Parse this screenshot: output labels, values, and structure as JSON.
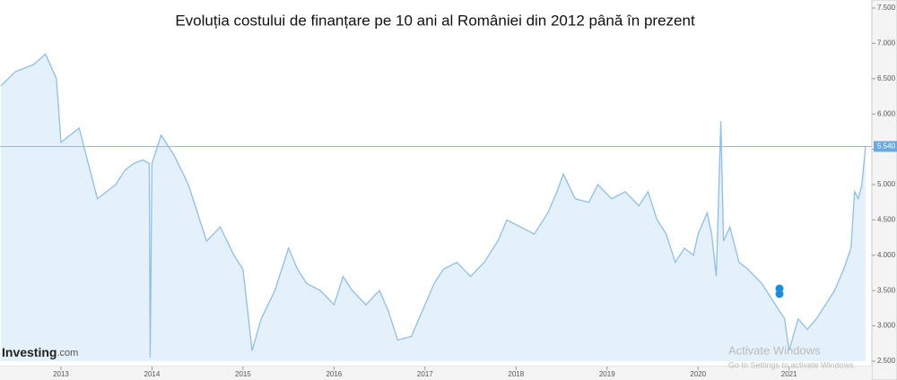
{
  "chart_data": {
    "type": "area",
    "title": "Evoluția costului de finanțare pe 10 ani al României din 2012 până în prezent",
    "x": [
      2012.34,
      2012.5,
      2012.7,
      2012.83,
      2012.95,
      2013.0,
      2013.1,
      2013.2,
      2013.3,
      2013.4,
      2013.5,
      2013.6,
      2013.7,
      2013.8,
      2013.9,
      2013.97,
      2013.98,
      2014.0,
      2014.1,
      2014.25,
      2014.4,
      2014.5,
      2014.6,
      2014.75,
      2014.9,
      2015.0,
      2015.1,
      2015.2,
      2015.35,
      2015.5,
      2015.6,
      2015.7,
      2015.85,
      2016.0,
      2016.1,
      2016.2,
      2016.35,
      2016.5,
      2016.6,
      2016.7,
      2016.85,
      2017.0,
      2017.1,
      2017.2,
      2017.35,
      2017.5,
      2017.65,
      2017.8,
      2017.9,
      2018.05,
      2018.2,
      2018.35,
      2018.45,
      2018.52,
      2018.65,
      2018.8,
      2018.9,
      2019.05,
      2019.2,
      2019.35,
      2019.45,
      2019.55,
      2019.65,
      2019.75,
      2019.85,
      2019.95,
      2020.0,
      2020.1,
      2020.15,
      2020.2,
      2020.25,
      2020.28,
      2020.35,
      2020.45,
      2020.55,
      2020.7,
      2020.8,
      2020.95,
      2021.0,
      2021.1,
      2021.2,
      2021.3,
      2021.4,
      2021.5,
      2021.6,
      2021.68,
      2021.72,
      2021.76,
      2021.8,
      2021.84
    ],
    "series": [
      {
        "color": "#8dbfe8",
        "values": [
          6.4,
          6.6,
          6.7,
          6.85,
          6.5,
          5.6,
          5.7,
          5.8,
          5.3,
          4.8,
          4.9,
          5.0,
          5.2,
          5.3,
          5.35,
          5.3,
          2.55,
          5.3,
          5.7,
          5.4,
          5.0,
          4.6,
          4.2,
          4.4,
          4.0,
          3.8,
          2.65,
          3.1,
          3.5,
          4.1,
          3.8,
          3.6,
          3.5,
          3.3,
          3.7,
          3.5,
          3.3,
          3.5,
          3.2,
          2.8,
          2.85,
          3.3,
          3.6,
          3.8,
          3.9,
          3.7,
          3.9,
          4.2,
          4.5,
          4.4,
          4.3,
          4.6,
          4.9,
          5.15,
          4.8,
          4.75,
          5.0,
          4.8,
          4.9,
          4.7,
          4.9,
          4.5,
          4.3,
          3.9,
          4.1,
          4.0,
          4.3,
          4.6,
          4.3,
          3.7,
          5.9,
          4.2,
          4.4,
          3.9,
          3.8,
          3.6,
          3.4,
          3.1,
          2.65,
          3.1,
          2.95,
          3.1,
          3.3,
          3.5,
          3.8,
          4.1,
          4.9,
          4.8,
          5.0,
          5.54
        ]
      }
    ],
    "fill_color": "#e4f1fb",
    "current_value": {
      "value": 5.54,
      "label": "5.540"
    },
    "xlim": [
      2012.33,
      2021.91
    ],
    "xticks": [
      2013,
      2014,
      2015,
      2016,
      2017,
      2018,
      2019,
      2020,
      2021
    ],
    "ylim": [
      2.5,
      7.5
    ],
    "yticks": [
      {
        "value": 2.5,
        "label": "2.500"
      },
      {
        "value": 3,
        "label": "3.000"
      },
      {
        "value": 3.5,
        "label": "3.500"
      },
      {
        "value": 4,
        "label": "4.000"
      },
      {
        "value": 4.5,
        "label": "4.500"
      },
      {
        "value": 5,
        "label": "5.000"
      },
      {
        "value": 5.5,
        "label": "5.500"
      },
      {
        "value": 6,
        "label": "6.000"
      },
      {
        "value": 6.5,
        "label": "6.500"
      },
      {
        "value": 7,
        "label": "7.000"
      },
      {
        "value": 7.5,
        "label": "7.500"
      }
    ],
    "logo": {
      "brand": "Investing",
      "suffix": ".com"
    },
    "overlay": {
      "title": "Activate Windows",
      "text": "Go to Settings to activate Windows."
    }
  }
}
